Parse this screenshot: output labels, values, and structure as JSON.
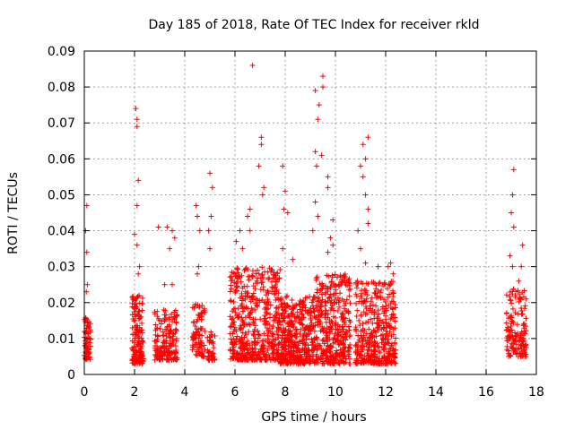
{
  "chart_data": {
    "type": "scatter",
    "title": "Day 185 of 2018, Rate Of TEC Index for receiver rkld",
    "xlabel": "GPS time / hours",
    "ylabel": "ROTI / TECUs",
    "xlim": [
      0,
      18
    ],
    "ylim": [
      0,
      0.09
    ],
    "x_ticks": [
      "0",
      "2",
      "4",
      "6",
      "8",
      "10",
      "12",
      "14",
      "16",
      "18"
    ],
    "y_ticks": [
      "0",
      "0.01",
      "0.02",
      "0.03",
      "0.04",
      "0.05",
      "0.06",
      "0.07",
      "0.08",
      "0.09"
    ],
    "grid": true,
    "legend": "none",
    "marker": "plus",
    "color": "#ff0000",
    "clusters": [
      {
        "x_range": [
          0.0,
          0.25
        ],
        "y_range": [
          0.004,
          0.016
        ],
        "count": 70
      },
      {
        "x_range": [
          1.9,
          2.35
        ],
        "y_range": [
          0.003,
          0.022
        ],
        "count": 160
      },
      {
        "x_range": [
          2.8,
          3.7
        ],
        "y_range": [
          0.004,
          0.018
        ],
        "count": 170
      },
      {
        "x_range": [
          4.3,
          4.8
        ],
        "y_range": [
          0.005,
          0.02
        ],
        "count": 90
      },
      {
        "x_range": [
          4.9,
          5.2
        ],
        "y_range": [
          0.004,
          0.012
        ],
        "count": 40
      },
      {
        "x_range": [
          5.8,
          7.8
        ],
        "y_range": [
          0.004,
          0.03
        ],
        "count": 520
      },
      {
        "x_range": [
          7.8,
          9.2
        ],
        "y_range": [
          0.003,
          0.022
        ],
        "count": 420
      },
      {
        "x_range": [
          9.2,
          10.6
        ],
        "y_range": [
          0.003,
          0.028
        ],
        "count": 380
      },
      {
        "x_range": [
          10.8,
          12.4
        ],
        "y_range": [
          0.003,
          0.026
        ],
        "count": 400
      },
      {
        "x_range": [
          16.8,
          17.6
        ],
        "y_range": [
          0.005,
          0.024
        ],
        "count": 150
      }
    ],
    "points": [
      [
        0.1,
        0.047
      ],
      [
        0.05,
        0.04
      ],
      [
        0.1,
        0.034
      ],
      [
        0.12,
        0.025
      ],
      [
        0.08,
        0.023
      ],
      [
        2.05,
        0.074
      ],
      [
        2.1,
        0.071
      ],
      [
        2.1,
        0.069
      ],
      [
        2.15,
        0.054
      ],
      [
        2.1,
        0.047
      ],
      [
        2.0,
        0.039
      ],
      [
        2.1,
        0.036
      ],
      [
        2.2,
        0.03
      ],
      [
        2.15,
        0.028
      ],
      [
        2.95,
        0.041
      ],
      [
        3.3,
        0.041
      ],
      [
        3.5,
        0.04
      ],
      [
        3.4,
        0.035
      ],
      [
        3.6,
        0.038
      ],
      [
        3.2,
        0.025
      ],
      [
        3.5,
        0.025
      ],
      [
        4.45,
        0.047
      ],
      [
        4.5,
        0.044
      ],
      [
        4.6,
        0.04
      ],
      [
        4.55,
        0.03
      ],
      [
        4.5,
        0.028
      ],
      [
        5.0,
        0.056
      ],
      [
        5.1,
        0.052
      ],
      [
        5.05,
        0.044
      ],
      [
        4.95,
        0.04
      ],
      [
        5.0,
        0.035
      ],
      [
        6.7,
        0.086
      ],
      [
        7.05,
        0.066
      ],
      [
        7.05,
        0.064
      ],
      [
        6.95,
        0.058
      ],
      [
        7.1,
        0.05
      ],
      [
        7.15,
        0.052
      ],
      [
        6.6,
        0.046
      ],
      [
        6.5,
        0.044
      ],
      [
        6.6,
        0.04
      ],
      [
        6.05,
        0.037
      ],
      [
        6.2,
        0.04
      ],
      [
        6.3,
        0.035
      ],
      [
        7.9,
        0.058
      ],
      [
        8.0,
        0.051
      ],
      [
        7.95,
        0.046
      ],
      [
        8.1,
        0.045
      ],
      [
        7.9,
        0.035
      ],
      [
        8.3,
        0.032
      ],
      [
        9.2,
        0.079
      ],
      [
        9.5,
        0.083
      ],
      [
        9.5,
        0.08
      ],
      [
        9.35,
        0.075
      ],
      [
        9.3,
        0.071
      ],
      [
        9.2,
        0.062
      ],
      [
        9.45,
        0.061
      ],
      [
        9.25,
        0.058
      ],
      [
        9.7,
        0.055
      ],
      [
        9.7,
        0.052
      ],
      [
        9.2,
        0.048
      ],
      [
        9.3,
        0.044
      ],
      [
        9.1,
        0.04
      ],
      [
        9.9,
        0.043
      ],
      [
        9.8,
        0.038
      ],
      [
        9.9,
        0.036
      ],
      [
        9.7,
        0.034
      ],
      [
        11.0,
        0.058
      ],
      [
        11.1,
        0.064
      ],
      [
        11.3,
        0.066
      ],
      [
        11.2,
        0.06
      ],
      [
        11.1,
        0.055
      ],
      [
        11.2,
        0.05
      ],
      [
        11.3,
        0.046
      ],
      [
        10.9,
        0.04
      ],
      [
        11.3,
        0.042
      ],
      [
        11.0,
        0.035
      ],
      [
        11.2,
        0.031
      ],
      [
        12.2,
        0.031
      ],
      [
        12.1,
        0.03
      ],
      [
        11.7,
        0.03
      ],
      [
        12.3,
        0.028
      ],
      [
        17.1,
        0.057
      ],
      [
        17.05,
        0.05
      ],
      [
        17.0,
        0.045
      ],
      [
        17.1,
        0.041
      ],
      [
        16.95,
        0.033
      ],
      [
        17.05,
        0.03
      ],
      [
        17.45,
        0.036
      ],
      [
        17.4,
        0.03
      ],
      [
        17.3,
        0.026
      ]
    ]
  }
}
